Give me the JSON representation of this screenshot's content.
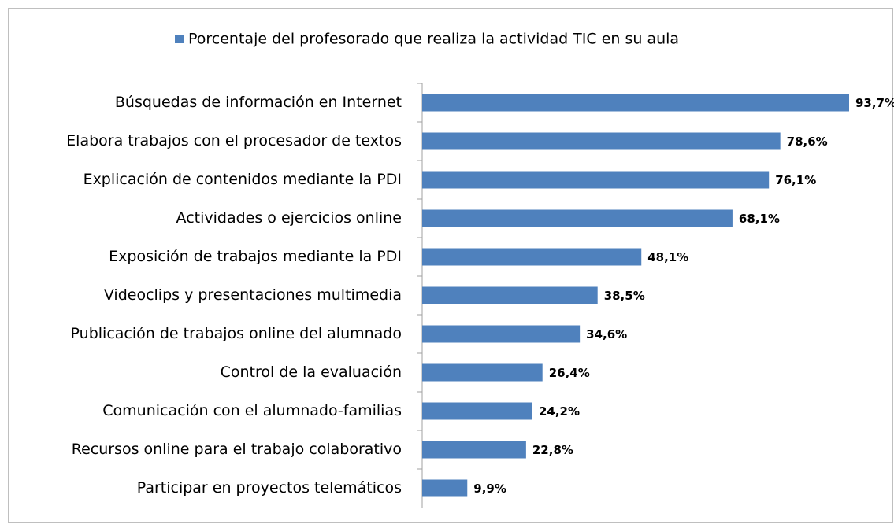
{
  "chart_data": {
    "type": "bar",
    "orientation": "horizontal",
    "categories": [
      "Búsquedas de información en Internet",
      "Elabora trabajos con el procesador de textos",
      "Explicación de contenidos mediante la PDI",
      "Actividades o ejercicios online",
      "Exposición de trabajos mediante la PDI",
      "Videoclips y presentaciones multimedia",
      "Publicación de trabajos online del alumnado",
      "Control de la evaluación",
      "Comunicación con el alumnado-familias",
      "Recursos online para el trabajo colaborativo",
      "Participar en proyectos telemáticos"
    ],
    "series": [
      {
        "name": "Porcentaje del profesorado que realiza la actividad TIC en su aula",
        "color": "#4f81bd",
        "values": [
          93.7,
          78.6,
          76.1,
          68.1,
          48.1,
          38.5,
          34.6,
          26.4,
          24.2,
          22.8,
          9.9
        ],
        "value_labels": [
          "93,7%",
          "78,6%",
          "76,1%",
          "68,1%",
          "48,1%",
          "38,5%",
          "34,6%",
          "26,4%",
          "24,2%",
          "22,8%",
          "9,9%"
        ]
      }
    ],
    "legend": "top"
  }
}
